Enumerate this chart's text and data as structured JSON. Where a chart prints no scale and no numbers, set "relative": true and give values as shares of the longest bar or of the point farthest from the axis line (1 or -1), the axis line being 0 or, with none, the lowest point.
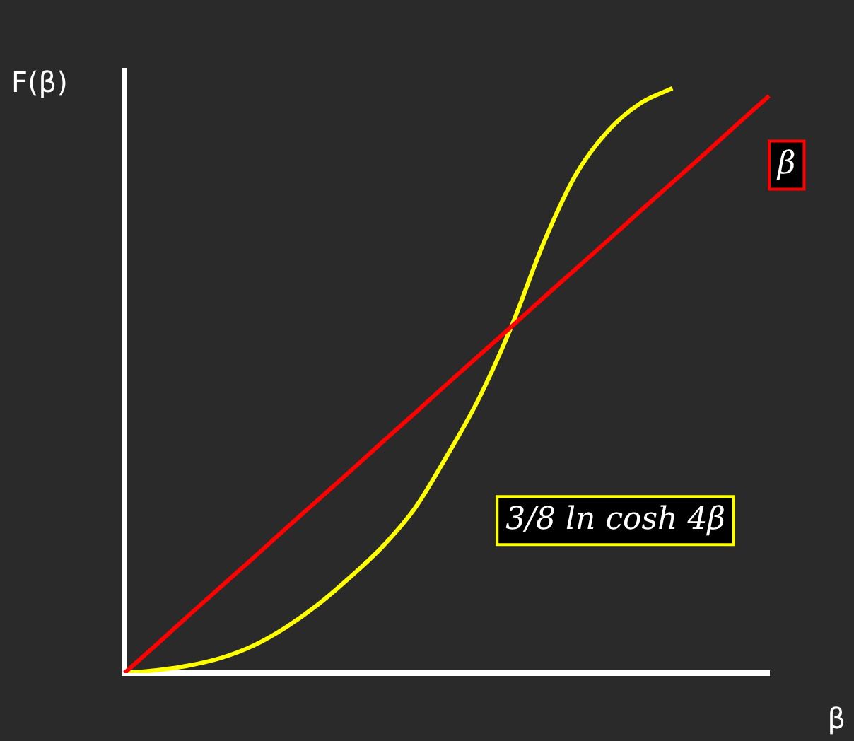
{
  "chart_data": {
    "type": "line",
    "relative": true,
    "xlabel": "β",
    "ylabel": "F(β)",
    "grid": false,
    "legend": false,
    "marker": "none",
    "line_style": "solid",
    "categories": [
      null,
      null,
      null,
      null,
      null,
      null,
      null,
      null,
      null,
      null,
      null,
      null,
      null,
      null,
      null,
      null,
      null,
      null,
      null,
      null,
      null
    ],
    "series": [
      {
        "name": "β",
        "color": "#ff0000",
        "values": [
          0,
          0.049,
          0.099,
          0.148,
          0.197,
          0.247,
          0.296,
          0.345,
          0.395,
          0.444,
          0.494,
          0.543,
          0.592,
          0.642,
          0.691,
          0.74,
          0.79,
          0.839,
          0.888,
          0.938,
          0.987
        ]
      },
      {
        "name": "3/8 ln cosh 4β",
        "color": "#ffff00",
        "values": [
          0,
          0.005,
          0.013,
          0.026,
          0.047,
          0.078,
          0.117,
          0.164,
          0.216,
          0.281,
          0.371,
          0.47,
          0.592,
          0.735,
          0.852,
          0.927,
          0.974,
          1,
          null,
          null,
          null
        ]
      }
    ]
  }
}
